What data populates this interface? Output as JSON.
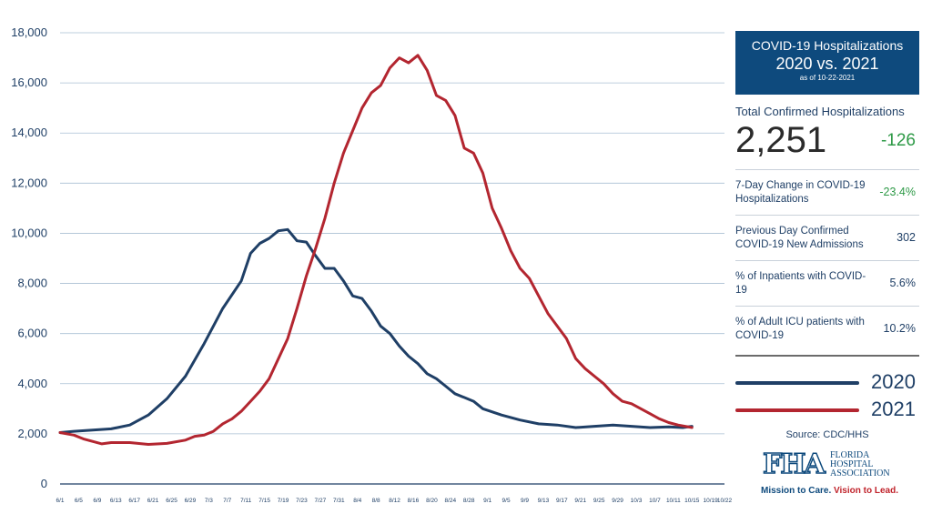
{
  "panel": {
    "title_line1": "COVID-19 Hospitalizations",
    "title_line2": "2020 vs. 2021",
    "as_of": "as of 10-22-2021",
    "total_label": "Total Confirmed Hospitalizations",
    "total_value": "2,251",
    "total_change": "-126",
    "stats": [
      {
        "label": "7-Day Change in COVID-19 Hospitalizations",
        "value": "-23.4%",
        "color": "#2e9a47"
      },
      {
        "label": "Previous Day Confirmed COVID-19 New Admissions",
        "value": "302"
      },
      {
        "label": "% of Inpatients with COVID-19",
        "value": "5.6%"
      },
      {
        "label": "% of Adult ICU patients with COVID-19",
        "value": "10.2%"
      }
    ],
    "source": "Source: CDC/HHS",
    "logo_text": "FHA",
    "logo_words": [
      "FLORIDA",
      "HOSPITAL",
      "ASSOCIATION"
    ],
    "tagline_a": "Mission to Care.",
    "tagline_b": "Vision to Lead."
  },
  "chart_data": {
    "type": "line",
    "ylim": [
      0,
      18000
    ],
    "yticks": [
      0,
      2000,
      4000,
      6000,
      8000,
      10000,
      12000,
      14000,
      16000,
      18000
    ],
    "ytick_labels": [
      "0",
      "2,000",
      "4,000",
      "6,000",
      "8,000",
      "10,000",
      "12,000",
      "14,000",
      "16,000",
      "18,000"
    ],
    "x_labels": [
      "6/1",
      "6/5",
      "6/9",
      "6/13",
      "6/17",
      "6/21",
      "6/25",
      "6/29",
      "7/3",
      "7/7",
      "7/11",
      "7/15",
      "7/19",
      "7/23",
      "7/27",
      "7/31",
      "8/4",
      "8/8",
      "8/12",
      "8/16",
      "8/20",
      "8/24",
      "8/28",
      "9/1",
      "9/5",
      "9/9",
      "9/13",
      "9/17",
      "9/21",
      "9/25",
      "9/29",
      "10/3",
      "10/7",
      "10/11",
      "10/15",
      "10/19",
      "10/22"
    ],
    "grid": "horizontal",
    "series": [
      {
        "name": "2020",
        "color": "#1f3f66",
        "values": [
          [
            1,
            2050
          ],
          [
            4,
            2100
          ],
          [
            8,
            2150
          ],
          [
            12,
            2200
          ],
          [
            16,
            2350
          ],
          [
            20,
            2750
          ],
          [
            24,
            3400
          ],
          [
            28,
            4300
          ],
          [
            32,
            5600
          ],
          [
            36,
            7000
          ],
          [
            40,
            8100
          ],
          [
            42,
            9200
          ],
          [
            44,
            9600
          ],
          [
            46,
            9800
          ],
          [
            48,
            10100
          ],
          [
            50,
            10150
          ],
          [
            52,
            9700
          ],
          [
            54,
            9650
          ],
          [
            56,
            9100
          ],
          [
            58,
            8600
          ],
          [
            60,
            8600
          ],
          [
            62,
            8100
          ],
          [
            64,
            7500
          ],
          [
            66,
            7400
          ],
          [
            68,
            6900
          ],
          [
            70,
            6300
          ],
          [
            72,
            6000
          ],
          [
            74,
            5500
          ],
          [
            76,
            5100
          ],
          [
            78,
            4800
          ],
          [
            80,
            4400
          ],
          [
            82,
            4200
          ],
          [
            84,
            3900
          ],
          [
            86,
            3600
          ],
          [
            88,
            3450
          ],
          [
            90,
            3300
          ],
          [
            92,
            3000
          ],
          [
            96,
            2750
          ],
          [
            100,
            2550
          ],
          [
            104,
            2400
          ],
          [
            108,
            2350
          ],
          [
            112,
            2250
          ],
          [
            116,
            2300
          ],
          [
            120,
            2350
          ],
          [
            124,
            2300
          ],
          [
            128,
            2250
          ],
          [
            132,
            2280
          ],
          [
            135,
            2250
          ],
          [
            137,
            2300
          ]
        ]
      },
      {
        "name": "2021",
        "color": "#b32630",
        "values": [
          [
            1,
            2050
          ],
          [
            4,
            1950
          ],
          [
            6,
            1800
          ],
          [
            8,
            1700
          ],
          [
            10,
            1600
          ],
          [
            12,
            1650
          ],
          [
            16,
            1650
          ],
          [
            20,
            1580
          ],
          [
            24,
            1620
          ],
          [
            28,
            1750
          ],
          [
            30,
            1900
          ],
          [
            32,
            1950
          ],
          [
            34,
            2100
          ],
          [
            36,
            2400
          ],
          [
            38,
            2600
          ],
          [
            40,
            2900
          ],
          [
            42,
            3300
          ],
          [
            44,
            3700
          ],
          [
            46,
            4200
          ],
          [
            48,
            5000
          ],
          [
            50,
            5800
          ],
          [
            52,
            7000
          ],
          [
            54,
            8300
          ],
          [
            56,
            9400
          ],
          [
            58,
            10600
          ],
          [
            60,
            12000
          ],
          [
            62,
            13200
          ],
          [
            64,
            14100
          ],
          [
            66,
            15000
          ],
          [
            68,
            15600
          ],
          [
            70,
            15900
          ],
          [
            72,
            16600
          ],
          [
            74,
            17000
          ],
          [
            76,
            16800
          ],
          [
            78,
            17100
          ],
          [
            80,
            16500
          ],
          [
            82,
            15500
          ],
          [
            84,
            15300
          ],
          [
            86,
            14700
          ],
          [
            88,
            13400
          ],
          [
            90,
            13200
          ],
          [
            92,
            12400
          ],
          [
            94,
            11000
          ],
          [
            96,
            10200
          ],
          [
            98,
            9300
          ],
          [
            100,
            8600
          ],
          [
            102,
            8200
          ],
          [
            104,
            7500
          ],
          [
            106,
            6800
          ],
          [
            108,
            6300
          ],
          [
            110,
            5800
          ],
          [
            112,
            5000
          ],
          [
            114,
            4600
          ],
          [
            116,
            4300
          ],
          [
            118,
            4000
          ],
          [
            120,
            3600
          ],
          [
            122,
            3300
          ],
          [
            124,
            3200
          ],
          [
            126,
            3000
          ],
          [
            128,
            2800
          ],
          [
            130,
            2600
          ],
          [
            132,
            2450
          ],
          [
            134,
            2350
          ],
          [
            137,
            2250
          ]
        ]
      }
    ]
  }
}
